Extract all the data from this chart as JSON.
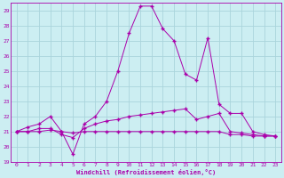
{
  "xlabel": "Windchill (Refroidissement éolien,°C)",
  "bg_color": "#cceef2",
  "grid_color": "#aad4dc",
  "line_color": "#aa00aa",
  "xlim": [
    -0.5,
    23.5
  ],
  "ylim": [
    19,
    29.5
  ],
  "yticks": [
    19,
    20,
    21,
    22,
    23,
    24,
    25,
    26,
    27,
    28,
    29
  ],
  "xticks": [
    0,
    1,
    2,
    3,
    4,
    5,
    6,
    7,
    8,
    9,
    10,
    11,
    12,
    13,
    14,
    15,
    16,
    17,
    18,
    19,
    20,
    21,
    22,
    23
  ],
  "series": [
    {
      "x": [
        0,
        1,
        2,
        3,
        4,
        5,
        6,
        7,
        8,
        9,
        10,
        11,
        12,
        13,
        14,
        15,
        16,
        17,
        18,
        19,
        20,
        21,
        22,
        23
      ],
      "y": [
        21.0,
        21.0,
        21.0,
        21.1,
        21.0,
        20.9,
        21.0,
        21.0,
        21.0,
        21.0,
        21.0,
        21.0,
        21.0,
        21.0,
        21.0,
        21.0,
        21.0,
        21.0,
        21.0,
        20.8,
        20.8,
        20.7,
        20.7,
        20.7
      ]
    },
    {
      "x": [
        0,
        1,
        2,
        3,
        4,
        5,
        6,
        7,
        8,
        9,
        10,
        11,
        12,
        13,
        14,
        15,
        16,
        17,
        18,
        19,
        20,
        21,
        22,
        23
      ],
      "y": [
        21.0,
        21.3,
        21.5,
        22.0,
        21.0,
        19.5,
        21.5,
        22.0,
        23.0,
        25.0,
        27.5,
        29.3,
        29.3,
        27.8,
        27.0,
        24.8,
        24.4,
        27.2,
        22.8,
        22.2,
        22.2,
        21.0,
        20.8,
        20.7
      ]
    },
    {
      "x": [
        0,
        1,
        2,
        3,
        4,
        5,
        6,
        7,
        8,
        9,
        10,
        11,
        12,
        13,
        14,
        15,
        16,
        17,
        18,
        19,
        20,
        21,
        22,
        23
      ],
      "y": [
        21.0,
        21.0,
        21.2,
        21.2,
        20.8,
        20.6,
        21.2,
        21.5,
        21.7,
        21.8,
        22.0,
        22.1,
        22.2,
        22.3,
        22.4,
        22.5,
        21.8,
        22.0,
        22.2,
        21.0,
        20.9,
        20.8,
        20.7,
        20.7
      ]
    }
  ]
}
